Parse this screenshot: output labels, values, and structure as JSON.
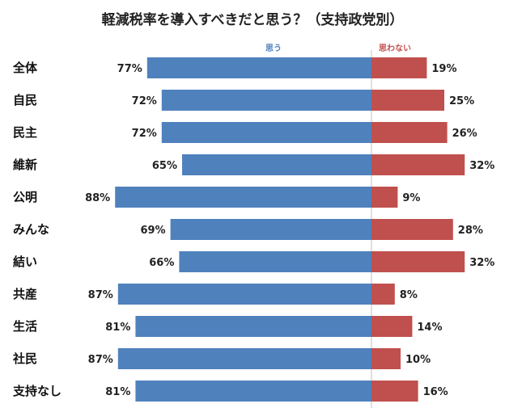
{
  "chart_data": {
    "type": "bar",
    "title": "軽減税率を導入すべきだと思う？（支持政党別）",
    "categories": [
      "全体",
      "自民",
      "民主",
      "維新",
      "公明",
      "みんな",
      "結い",
      "共産",
      "生活",
      "社民",
      "支持なし"
    ],
    "series": [
      {
        "name": "思う",
        "color": "#4f81bd",
        "values": [
          77,
          72,
          72,
          65,
          88,
          69,
          66,
          87,
          81,
          87,
          81
        ]
      },
      {
        "name": "思わない",
        "color": "#c0504d",
        "values": [
          19,
          25,
          26,
          32,
          9,
          28,
          32,
          8,
          14,
          10,
          16
        ]
      }
    ],
    "value_suffix": "%",
    "orientation": "diverging-horizontal",
    "legend_placement": "top"
  }
}
